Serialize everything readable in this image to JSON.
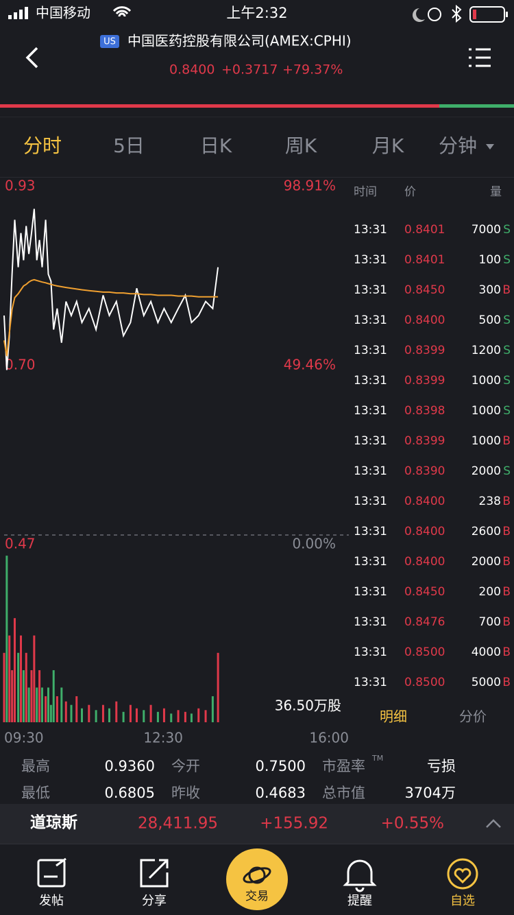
{
  "status_bar": {
    "carrier": "中国移动",
    "time": "上午2:32"
  },
  "header": {
    "market_badge": "US",
    "title": "中国医药控股有限公司(AMEX:CPHI)",
    "price": "0.8400",
    "change": "+0.3717",
    "change_percent": "+79.37%"
  },
  "tabs": [
    "分时",
    "5日",
    "日K",
    "周K",
    "月K",
    "分钟"
  ],
  "chart_data": {
    "type": "line",
    "x": [
      "09:30",
      "09:33",
      "09:36",
      "09:39",
      "09:42",
      "09:46",
      "09:49",
      "09:52",
      "09:55",
      "09:58",
      "10:01",
      "10:04",
      "10:07",
      "10:10",
      "10:13",
      "10:17",
      "10:20",
      "10:23",
      "10:26",
      "10:30",
      "10:35",
      "10:40",
      "10:46",
      "10:52",
      "10:58",
      "11:06",
      "11:14",
      "11:22",
      "11:29",
      "11:37",
      "11:45",
      "11:53",
      "12:00",
      "12:08",
      "12:16",
      "12:24",
      "12:31",
      "12:39",
      "12:47",
      "12:55",
      "13:02",
      "13:10",
      "13:18",
      "13:26",
      "13:32"
    ],
    "xlim": [
      "09:30",
      "16:00"
    ],
    "xticks": [
      "09:30",
      "12:30",
      "16:00"
    ],
    "ylim": [
      0.47,
      0.93
    ],
    "yticks": [
      {
        "value": 0.93,
        "label": "0.93"
      },
      {
        "value": 0.7,
        "label": "0.70"
      },
      {
        "value": 0.47,
        "label": "0.47"
      }
    ],
    "y2lim": [
      0,
      98.91
    ],
    "y2ticks": [
      {
        "value": 98.91,
        "label": "98.91%"
      },
      {
        "value": 49.46,
        "label": "49.46%"
      },
      {
        "value": 0,
        "label": "0.00%"
      }
    ],
    "series": [
      {
        "color": "#ffffff",
        "values": [
          0.752,
          0.682,
          0.726,
          0.805,
          0.875,
          0.814,
          0.858,
          0.823,
          0.867,
          0.831,
          0.858,
          0.889,
          0.823,
          0.849,
          0.814,
          0.875,
          0.805,
          0.796,
          0.734,
          0.761,
          0.717,
          0.77,
          0.752,
          0.77,
          0.743,
          0.761,
          0.734,
          0.778,
          0.752,
          0.77,
          0.726,
          0.743,
          0.787,
          0.752,
          0.77,
          0.743,
          0.761,
          0.743,
          0.761,
          0.778,
          0.743,
          0.752,
          0.77,
          0.761,
          0.814
        ]
      },
      {
        "color": "#f0a030",
        "values": [
          0.72,
          0.7,
          0.73,
          0.76,
          0.775,
          0.78,
          0.785,
          0.79,
          0.792,
          0.795,
          0.797,
          0.798,
          0.797,
          0.796,
          0.795,
          0.794,
          0.793,
          0.792,
          0.791,
          0.79,
          0.789,
          0.788,
          0.787,
          0.786,
          0.785,
          0.784,
          0.783,
          0.782,
          0.782,
          0.781,
          0.781,
          0.78,
          0.78,
          0.779,
          0.779,
          0.778,
          0.778,
          0.778,
          0.777,
          0.777,
          0.777,
          0.776,
          0.776,
          0.776,
          0.776
        ]
      }
    ],
    "volume": {
      "label": "36.50万股",
      "ylim": [
        0,
        10
      ],
      "up_color": "#e0394a",
      "down_color": "#3fae6a",
      "values": [
        4,
        9.6,
        5,
        3,
        6,
        4,
        5,
        3,
        4,
        2,
        3,
        5,
        2,
        3,
        2,
        1.5,
        2,
        1,
        3,
        1.5,
        2,
        1.2,
        1,
        1.5,
        0.8,
        1,
        0.7,
        1,
        0.8,
        1.2,
        0.6,
        1,
        0.8,
        0.7,
        1,
        0.6,
        0.8,
        0.5,
        0.7,
        0.6,
        0.5,
        0.8,
        0.7,
        1.5,
        4
      ]
    }
  },
  "trades": {
    "columns": [
      "时间",
      "价",
      "量"
    ],
    "side_colors": {
      "S": "#3fae6a",
      "B": "#e0394a"
    },
    "rows": [
      [
        "13:31",
        "0.8401",
        "7000",
        "S"
      ],
      [
        "13:31",
        "0.8401",
        "100",
        "S"
      ],
      [
        "13:31",
        "0.8450",
        "300",
        "B"
      ],
      [
        "13:31",
        "0.8400",
        "500",
        "S"
      ],
      [
        "13:31",
        "0.8399",
        "1200",
        "S"
      ],
      [
        "13:31",
        "0.8399",
        "1000",
        "S"
      ],
      [
        "13:31",
        "0.8398",
        "1000",
        "S"
      ],
      [
        "13:31",
        "0.8399",
        "1000",
        "B"
      ],
      [
        "13:31",
        "0.8390",
        "2000",
        "S"
      ],
      [
        "13:31",
        "0.8400",
        "238",
        "B"
      ],
      [
        "13:31",
        "0.8400",
        "2600",
        "B"
      ],
      [
        "13:31",
        "0.8400",
        "2000",
        "B"
      ],
      [
        "13:31",
        "0.8450",
        "200",
        "B"
      ],
      [
        "13:31",
        "0.8476",
        "700",
        "B"
      ],
      [
        "13:31",
        "0.8500",
        "4000",
        "B"
      ],
      [
        "13:31",
        "0.8500",
        "5000",
        "B"
      ]
    ],
    "tabs": [
      "明细",
      "分价"
    ]
  },
  "stats": {
    "rows": [
      [
        [
          "最高",
          "0.9360"
        ],
        [
          "今开",
          "0.7500"
        ],
        [
          "市盈率",
          "亏损"
        ]
      ],
      [
        [
          "最低",
          "0.6805"
        ],
        [
          "昨收",
          "0.4683"
        ],
        [
          "总市值",
          "3704万"
        ]
      ]
    ],
    "trademark": "TM"
  },
  "index_bar": {
    "name": "道琼斯",
    "value": "28,411.95",
    "change": "+155.92",
    "change_percent": "+0.55%"
  },
  "nav": [
    "发帖",
    "分享",
    "交易",
    "提醒",
    "自选"
  ]
}
